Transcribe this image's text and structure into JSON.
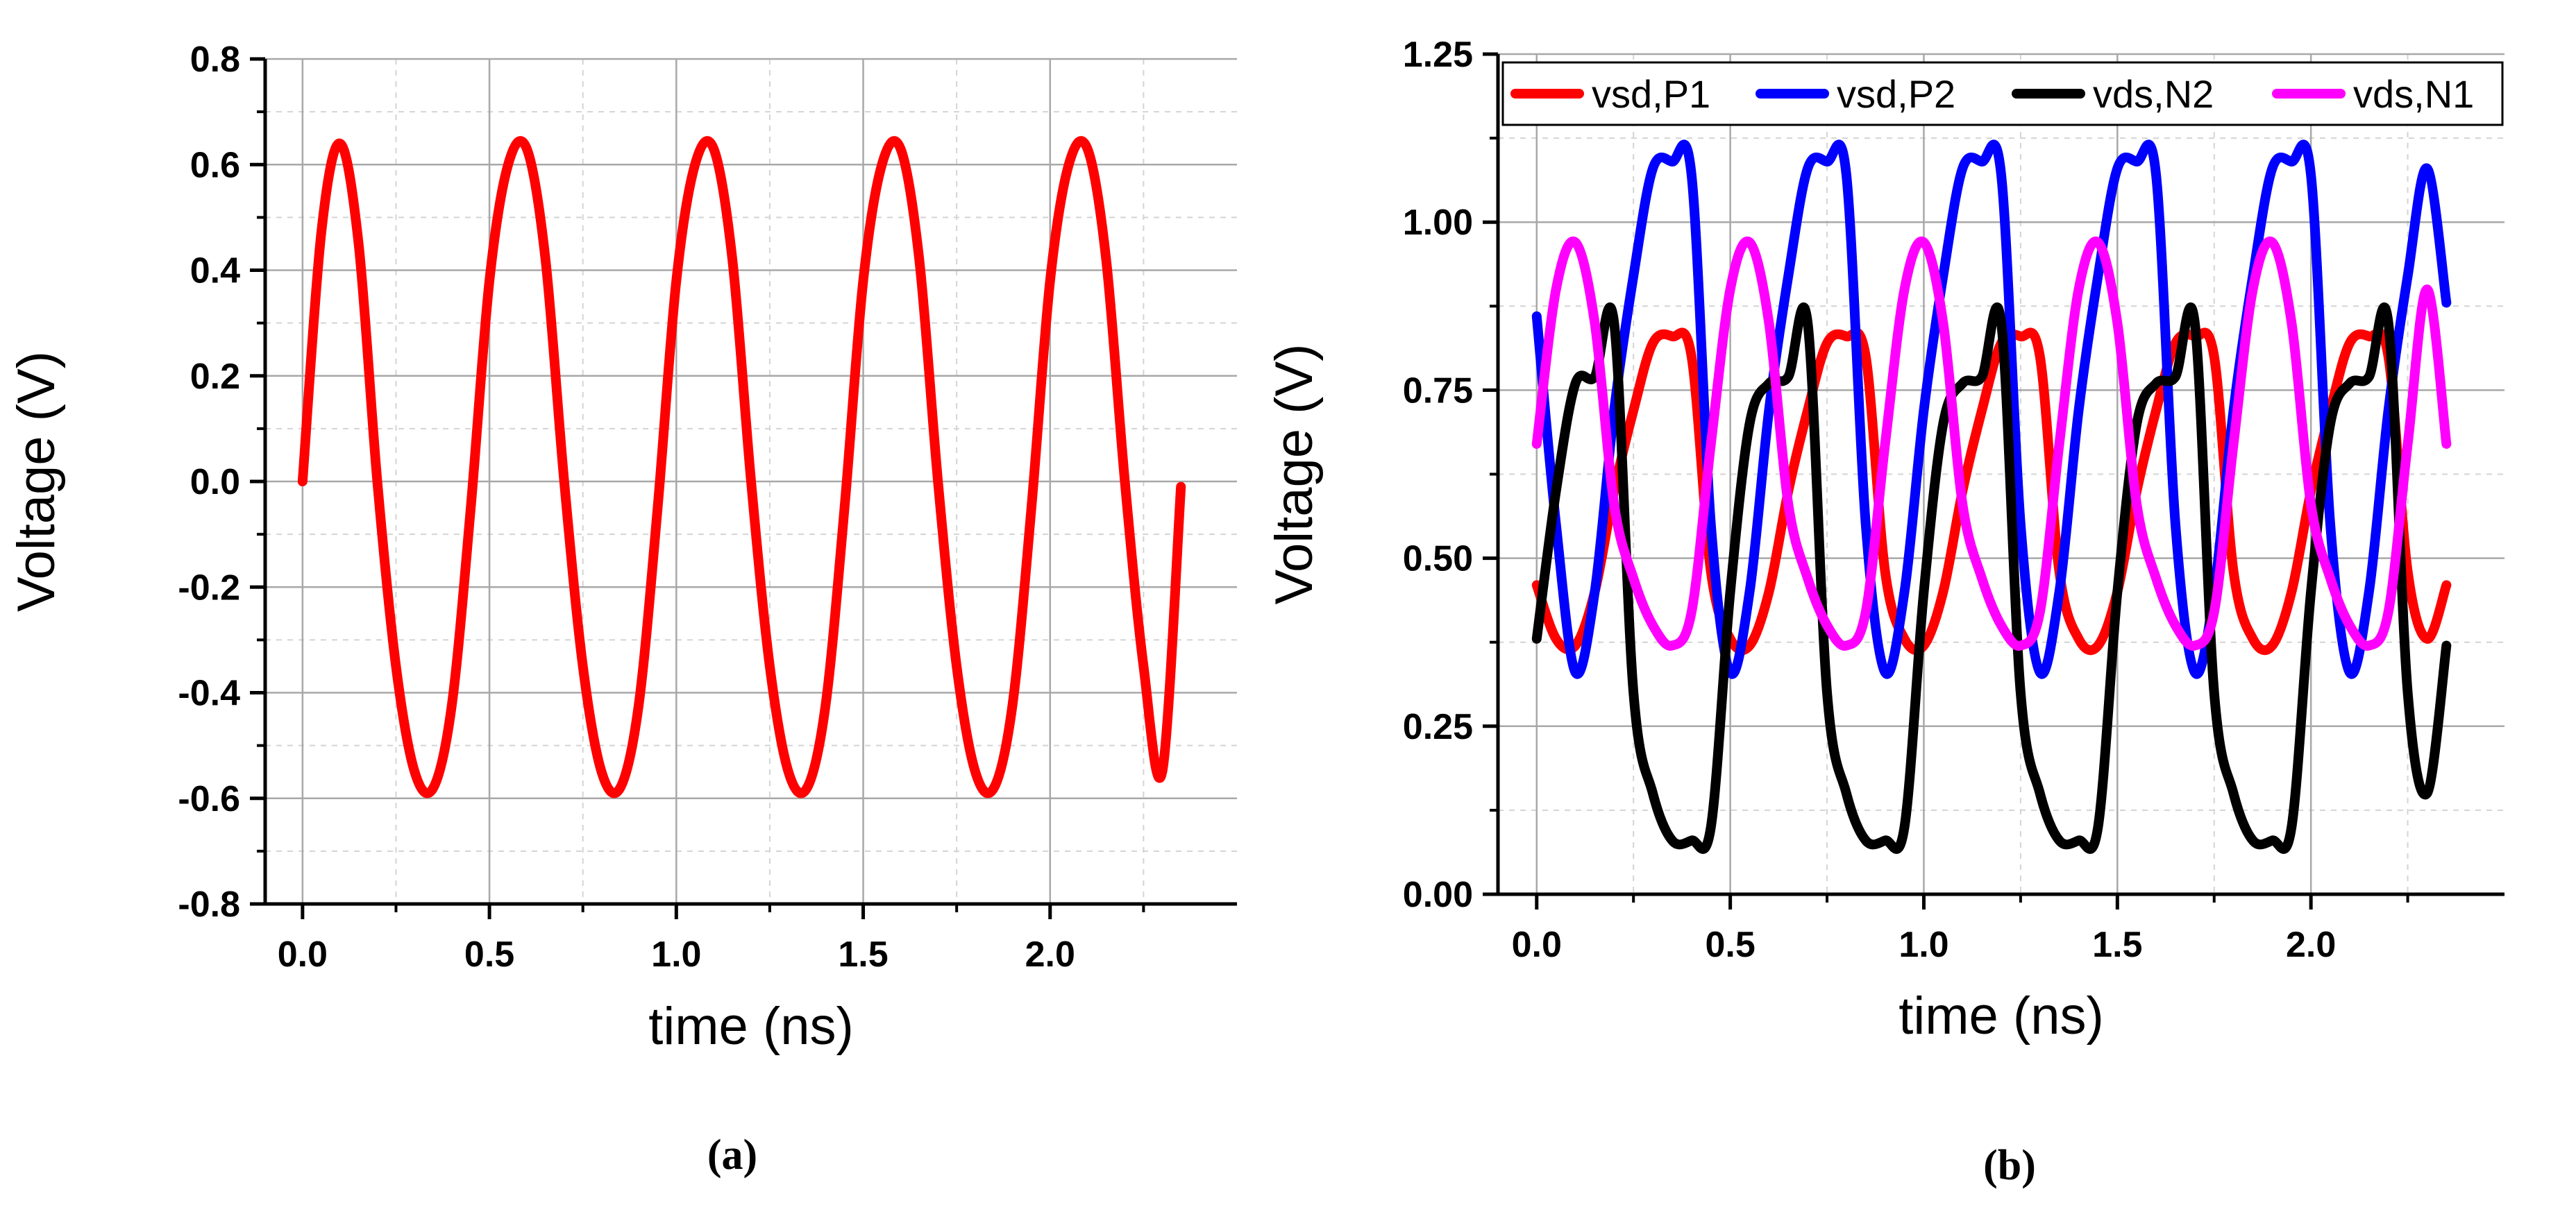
{
  "figure": {
    "panel_captions": [
      "(a)",
      "(b)"
    ]
  },
  "chart_data": [
    {
      "type": "line",
      "caption": "(a)",
      "xlabel": "time (ns)",
      "ylabel": "Voltage (V)",
      "xlim": [
        -0.1,
        2.5
      ],
      "ylim": [
        -0.8,
        0.8
      ],
      "xticks": [
        0.0,
        0.5,
        1.0,
        1.5,
        2.0
      ],
      "xtick_labels": [
        "0.0",
        "0.5",
        "1.0",
        "1.5",
        "2.0"
      ],
      "yticks": [
        -0.8,
        -0.6,
        -0.4,
        -0.2,
        0.0,
        0.2,
        0.4,
        0.6,
        0.8
      ],
      "ytick_labels": [
        "-0.8",
        "-0.6",
        "-0.4",
        "-0.2",
        "0.0",
        "0.2",
        "0.4",
        "0.6",
        "0.8"
      ],
      "grid": true,
      "series": [
        {
          "color": "#ff0000",
          "x": [
            0.0,
            0.05,
            0.1,
            0.15,
            0.2,
            0.25,
            0.3,
            0.35,
            0.4,
            0.45,
            0.5,
            0.55,
            0.6,
            0.65,
            0.7,
            0.75,
            0.8,
            0.85,
            0.9,
            0.95,
            1.0,
            1.05,
            1.1,
            1.15,
            1.2,
            1.25,
            1.3,
            1.35,
            1.4,
            1.45,
            1.5,
            1.55,
            1.6,
            1.65,
            1.7,
            1.75,
            1.8,
            1.85,
            1.9,
            1.95,
            2.0,
            2.05,
            2.1,
            2.15,
            2.2,
            2.25,
            2.3,
            2.35
          ],
          "y": [
            0.0,
            0.47,
            0.64,
            0.45,
            0.0,
            -0.35,
            -0.55,
            -0.58,
            -0.42,
            -0.05,
            0.38,
            0.6,
            0.63,
            0.42,
            0.0,
            -0.35,
            -0.55,
            -0.58,
            -0.42,
            -0.05,
            0.38,
            0.6,
            0.63,
            0.42,
            0.0,
            -0.35,
            -0.55,
            -0.58,
            -0.42,
            -0.05,
            0.38,
            0.6,
            0.63,
            0.42,
            0.0,
            -0.35,
            -0.55,
            -0.58,
            -0.42,
            -0.05,
            0.38,
            0.6,
            0.63,
            0.42,
            0.0,
            -0.35,
            -0.55,
            -0.01
          ]
        }
      ]
    },
    {
      "type": "line",
      "caption": "(b)",
      "xlabel": "time (ns)",
      "ylabel": "Voltage (V)",
      "xlim": [
        -0.1,
        2.5
      ],
      "ylim": [
        0.0,
        1.25
      ],
      "xticks": [
        0.0,
        0.5,
        1.0,
        1.5,
        2.0
      ],
      "xtick_labels": [
        "0.0",
        "0.5",
        "1.0",
        "1.5",
        "2.0"
      ],
      "yticks": [
        0.0,
        0.25,
        0.5,
        0.75,
        1.0,
        1.25
      ],
      "ytick_labels": [
        "0.00",
        "0.25",
        "0.50",
        "0.75",
        "1.00",
        "1.25"
      ],
      "grid": true,
      "legend": "top",
      "series": [
        {
          "name": "vsd,P1",
          "color": "#ff0000",
          "x": [
            0.0,
            0.05,
            0.1,
            0.15,
            0.2,
            0.25,
            0.3,
            0.35,
            0.4,
            0.45,
            0.5,
            0.55,
            0.6,
            0.65,
            0.7,
            0.75,
            0.8,
            0.85,
            0.9,
            0.95,
            1.0,
            1.05,
            1.1,
            1.15,
            1.2,
            1.25,
            1.3,
            1.35,
            1.4,
            1.45,
            1.5,
            1.55,
            1.6,
            1.65,
            1.7,
            1.75,
            1.8,
            1.85,
            1.9,
            1.95,
            2.0,
            2.05,
            2.1,
            2.15,
            2.2,
            2.25,
            2.3,
            2.35
          ],
          "y": [
            0.46,
            0.38,
            0.37,
            0.45,
            0.6,
            0.72,
            0.82,
            0.83,
            0.8,
            0.48,
            0.38,
            0.37,
            0.45,
            0.6,
            0.72,
            0.82,
            0.83,
            0.8,
            0.48,
            0.38,
            0.37,
            0.45,
            0.6,
            0.72,
            0.82,
            0.83,
            0.8,
            0.48,
            0.38,
            0.37,
            0.45,
            0.6,
            0.72,
            0.82,
            0.83,
            0.8,
            0.48,
            0.38,
            0.37,
            0.45,
            0.6,
            0.72,
            0.82,
            0.83,
            0.8,
            0.48,
            0.38,
            0.46
          ]
        },
        {
          "name": "vsd,P2",
          "color": "#0000ff",
          "x": [
            0.0,
            0.05,
            0.1,
            0.15,
            0.2,
            0.25,
            0.3,
            0.35,
            0.4,
            0.45,
            0.5,
            0.55,
            0.6,
            0.65,
            0.7,
            0.75,
            0.8,
            0.85,
            0.9,
            0.95,
            1.0,
            1.05,
            1.1,
            1.15,
            1.2,
            1.25,
            1.3,
            1.35,
            1.4,
            1.45,
            1.5,
            1.55,
            1.6,
            1.65,
            1.7,
            1.75,
            1.8,
            1.85,
            1.9,
            1.95,
            2.0,
            2.05,
            2.1,
            2.15,
            2.2,
            2.25,
            2.3,
            2.35
          ],
          "y": [
            0.86,
            0.55,
            0.33,
            0.45,
            0.72,
            0.92,
            1.08,
            1.09,
            1.07,
            0.55,
            0.33,
            0.45,
            0.72,
            0.92,
            1.08,
            1.09,
            1.07,
            0.55,
            0.33,
            0.45,
            0.72,
            0.92,
            1.08,
            1.09,
            1.07,
            0.55,
            0.33,
            0.45,
            0.72,
            0.92,
            1.08,
            1.09,
            1.07,
            0.55,
            0.33,
            0.45,
            0.72,
            0.92,
            1.08,
            1.09,
            1.07,
            0.55,
            0.33,
            0.45,
            0.72,
            0.92,
            1.08,
            0.88
          ]
        },
        {
          "name": "vds,N2",
          "color": "#000000",
          "x": [
            0.0,
            0.05,
            0.1,
            0.15,
            0.2,
            0.25,
            0.3,
            0.35,
            0.4,
            0.45,
            0.5,
            0.55,
            0.6,
            0.65,
            0.7,
            0.75,
            0.8,
            0.85,
            0.9,
            0.95,
            1.0,
            1.05,
            1.1,
            1.15,
            1.2,
            1.25,
            1.3,
            1.35,
            1.4,
            1.45,
            1.5,
            1.55,
            1.6,
            1.65,
            1.7,
            1.75,
            1.8,
            1.85,
            1.9,
            1.95,
            2.0,
            2.05,
            2.1,
            2.15,
            2.2,
            2.25,
            2.3,
            2.35
          ],
          "y": [
            0.38,
            0.6,
            0.76,
            0.77,
            0.85,
            0.3,
            0.15,
            0.08,
            0.08,
            0.1,
            0.45,
            0.7,
            0.76,
            0.77,
            0.85,
            0.3,
            0.15,
            0.08,
            0.08,
            0.1,
            0.45,
            0.7,
            0.76,
            0.77,
            0.85,
            0.3,
            0.15,
            0.08,
            0.08,
            0.1,
            0.45,
            0.7,
            0.76,
            0.77,
            0.85,
            0.3,
            0.15,
            0.08,
            0.08,
            0.1,
            0.45,
            0.7,
            0.76,
            0.77,
            0.85,
            0.3,
            0.15,
            0.37
          ]
        },
        {
          "name": "vds,N1",
          "color": "#ff00ff",
          "x": [
            0.0,
            0.05,
            0.1,
            0.15,
            0.2,
            0.25,
            0.3,
            0.35,
            0.4,
            0.45,
            0.5,
            0.55,
            0.6,
            0.65,
            0.7,
            0.75,
            0.8,
            0.85,
            0.9,
            0.95,
            1.0,
            1.05,
            1.1,
            1.15,
            1.2,
            1.25,
            1.3,
            1.35,
            1.4,
            1.45,
            1.5,
            1.55,
            1.6,
            1.65,
            1.7,
            1.75,
            1.8,
            1.85,
            1.9,
            1.95,
            2.0,
            2.05,
            2.1,
            2.15,
            2.2,
            2.25,
            2.3,
            2.35
          ],
          "y": [
            0.67,
            0.9,
            0.97,
            0.85,
            0.58,
            0.47,
            0.4,
            0.37,
            0.42,
            0.67,
            0.9,
            0.97,
            0.85,
            0.58,
            0.47,
            0.4,
            0.37,
            0.42,
            0.67,
            0.9,
            0.97,
            0.85,
            0.58,
            0.47,
            0.4,
            0.37,
            0.42,
            0.67,
            0.9,
            0.97,
            0.85,
            0.58,
            0.47,
            0.4,
            0.37,
            0.42,
            0.67,
            0.9,
            0.97,
            0.85,
            0.58,
            0.47,
            0.4,
            0.37,
            0.42,
            0.67,
            0.9,
            0.67
          ]
        }
      ]
    }
  ]
}
